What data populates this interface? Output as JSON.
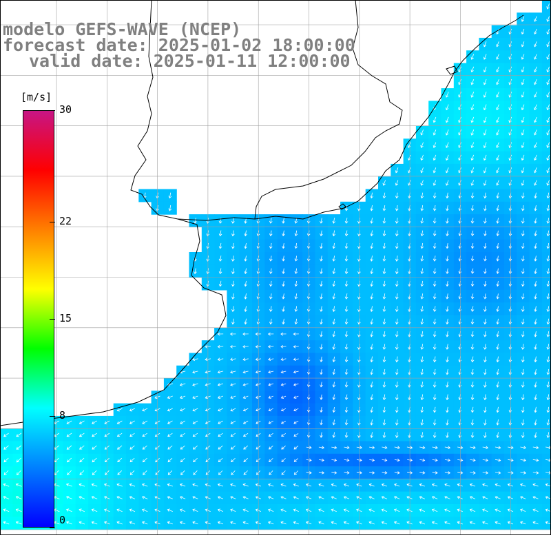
{
  "header": {
    "line1": "modelo GEFS-WAVE (NCEP)",
    "line2": "forecast date: 2025-01-02 18:00:00",
    "line3": "valid date: 2025-01-11 12:00:00"
  },
  "colorbar": {
    "unit": "[m/s]",
    "ticks": [
      {
        "label": "30",
        "value": 30
      },
      {
        "label": "22",
        "value": 22
      },
      {
        "label": "15",
        "value": 15
      },
      {
        "label": "8",
        "value": 8
      },
      {
        "label": "0",
        "value": 0
      }
    ],
    "range": [
      0,
      30
    ],
    "colors": [
      "#0000ff",
      "#0080ff",
      "#00ffff",
      "#00ff00",
      "#ffff00",
      "#ff8000",
      "#ff0000",
      "#c71585"
    ]
  },
  "map": {
    "variable": "wind speed and direction",
    "land_color": "#ffffff",
    "coastline_color": "#000000",
    "grid_color": "#a0a0a0",
    "arrow_color": "#ffffff"
  }
}
